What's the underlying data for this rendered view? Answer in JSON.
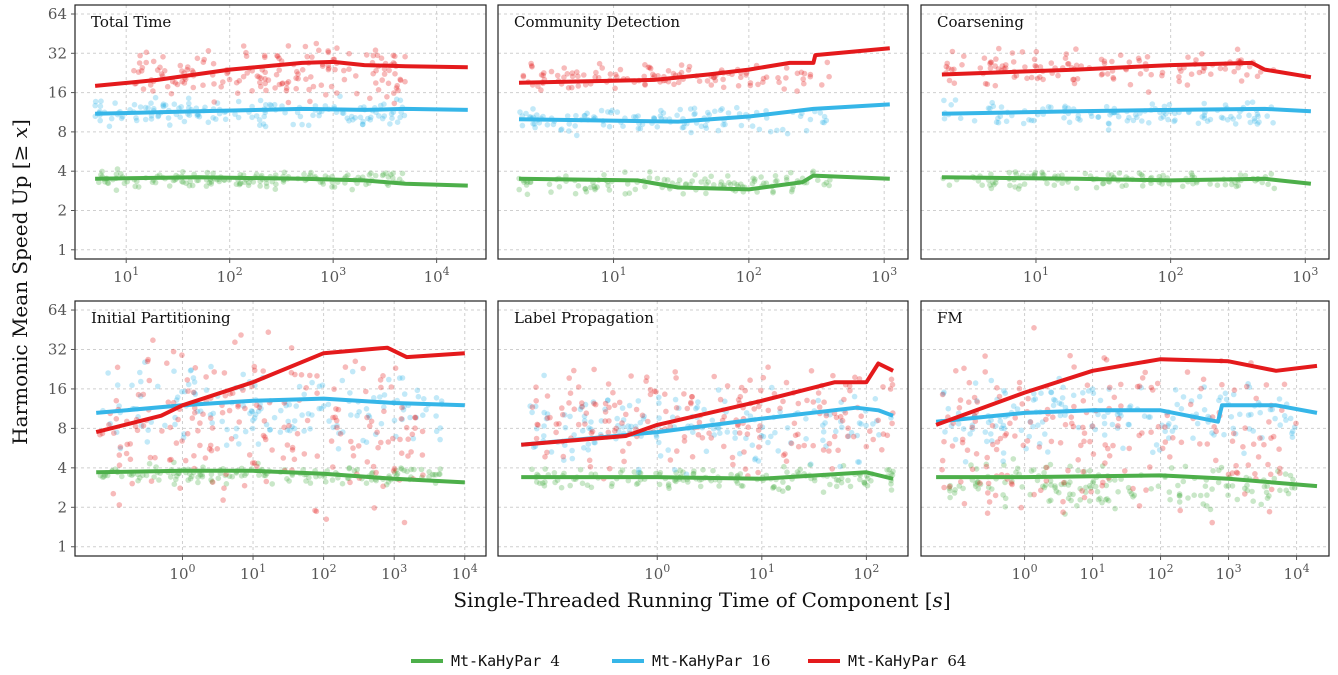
{
  "chart_data": {
    "type": "scatter",
    "y_label_parts": [
      "Harmonic Mean Speed Up [",
      "≥",
      " ",
      "x",
      "]"
    ],
    "x_label_parts": [
      "Single-Threaded Running Time of Component [",
      "s",
      "]"
    ],
    "y_scale": "log2",
    "y_range": [
      0.85,
      75
    ],
    "y_ticks": [
      1,
      2,
      4,
      8,
      16,
      32,
      64
    ],
    "x_scale": "log10",
    "grid": true,
    "legend_position": "bottom-center",
    "legend": [
      {
        "name": "Mt-KaHyPar",
        "threads": "4",
        "color": "#4daf4a"
      },
      {
        "name": "Mt-KaHyPar",
        "threads": "16",
        "color": "#36b6e8"
      },
      {
        "name": "Mt-KaHyPar",
        "threads": "64",
        "color": "#e41a1c"
      }
    ],
    "panels": [
      {
        "title": "Total Time",
        "x_range": [
          3.2,
          30000
        ],
        "x_ticks": [
          10,
          100,
          1000,
          10000
        ],
        "series": [
          {
            "threads": "4",
            "line": [
              [
                5,
                3.5
              ],
              [
                50,
                3.6
              ],
              [
                500,
                3.5
              ],
              [
                2000,
                3.4
              ],
              [
                5000,
                3.2
              ],
              [
                20000,
                3.1
              ]
            ],
            "cloud": {
              "x": [
                5,
                5000
              ],
              "y": [
                2.8,
                4.2
              ],
              "n": 150,
              "seed": 11
            }
          },
          {
            "threads": "16",
            "line": [
              [
                5,
                11
              ],
              [
                50,
                11.5
              ],
              [
                500,
                12
              ],
              [
                2000,
                11.8
              ],
              [
                5000,
                12
              ],
              [
                20000,
                11.8
              ]
            ],
            "cloud": {
              "x": [
                5,
                5000
              ],
              "y": [
                8,
                16
              ],
              "n": 150,
              "seed": 12
            }
          },
          {
            "threads": "64",
            "line": [
              [
                5,
                18
              ],
              [
                20,
                20
              ],
              [
                100,
                24
              ],
              [
                500,
                27
              ],
              [
                1000,
                27.5
              ],
              [
                2000,
                26
              ],
              [
                5000,
                25.5
              ],
              [
                20000,
                25
              ]
            ],
            "cloud": {
              "x": [
                10,
                5000
              ],
              "y": [
                12,
                45
              ],
              "n": 170,
              "seed": 13
            }
          }
        ]
      },
      {
        "title": "Community Detection",
        "x_range": [
          1.4,
          1500
        ],
        "x_ticks": [
          10,
          100,
          1000
        ],
        "series": [
          {
            "threads": "4",
            "line": [
              [
                2,
                3.5
              ],
              [
                15,
                3.4
              ],
              [
                30,
                3.0
              ],
              [
                100,
                2.9
              ],
              [
                250,
                3.3
              ],
              [
                300,
                3.7
              ],
              [
                1100,
                3.5
              ]
            ],
            "cloud": {
              "x": [
                2,
                400
              ],
              "y": [
                2.5,
                4.2
              ],
              "n": 120,
              "seed": 21
            }
          },
          {
            "threads": "16",
            "line": [
              [
                2,
                10
              ],
              [
                30,
                9.6
              ],
              [
                100,
                10.5
              ],
              [
                300,
                12
              ],
              [
                1100,
                13
              ]
            ],
            "cloud": {
              "x": [
                2,
                400
              ],
              "y": [
                7,
                14
              ],
              "n": 120,
              "seed": 22
            }
          },
          {
            "threads": "64",
            "line": [
              [
                2,
                19
              ],
              [
                20,
                20
              ],
              [
                50,
                22
              ],
              [
                100,
                24
              ],
              [
                200,
                27
              ],
              [
                300,
                27
              ],
              [
                310,
                31
              ],
              [
                1100,
                35
              ]
            ],
            "cloud": {
              "x": [
                2,
                400
              ],
              "y": [
                15,
                30
              ],
              "n": 120,
              "seed": 23
            }
          }
        ]
      },
      {
        "title": "Coarsening",
        "x_range": [
          1.4,
          1500
        ],
        "x_ticks": [
          10,
          100,
          1000
        ],
        "series": [
          {
            "threads": "4",
            "line": [
              [
                2,
                3.6
              ],
              [
                20,
                3.5
              ],
              [
                100,
                3.4
              ],
              [
                500,
                3.5
              ],
              [
                1100,
                3.2
              ]
            ],
            "cloud": {
              "x": [
                2,
                600
              ],
              "y": [
                2.8,
                4.2
              ],
              "n": 120,
              "seed": 31
            }
          },
          {
            "threads": "16",
            "line": [
              [
                2,
                11
              ],
              [
                20,
                11.5
              ],
              [
                100,
                11.8
              ],
              [
                500,
                12
              ],
              [
                1100,
                11.5
              ]
            ],
            "cloud": {
              "x": [
                2,
                600
              ],
              "y": [
                8,
                15
              ],
              "n": 120,
              "seed": 32
            }
          },
          {
            "threads": "64",
            "line": [
              [
                2,
                22
              ],
              [
                20,
                24
              ],
              [
                100,
                26
              ],
              [
                400,
                27
              ],
              [
                500,
                24
              ],
              [
                1100,
                21
              ]
            ],
            "cloud": {
              "x": [
                2,
                600
              ],
              "y": [
                15,
                40
              ],
              "n": 130,
              "seed": 33
            }
          }
        ]
      },
      {
        "title": "Initial Partitioning",
        "x_range": [
          0.03,
          20000
        ],
        "x_ticks": [
          1,
          10,
          100,
          1000,
          10000
        ],
        "series": [
          {
            "threads": "4",
            "line": [
              [
                0.06,
                3.7
              ],
              [
                1,
                3.8
              ],
              [
                10,
                3.8
              ],
              [
                100,
                3.6
              ],
              [
                1000,
                3.3
              ],
              [
                10000,
                3.1
              ]
            ],
            "cloud": {
              "x": [
                0.06,
                5000
              ],
              "y": [
                2.8,
                4.5
              ],
              "n": 150,
              "seed": 41
            }
          },
          {
            "threads": "16",
            "line": [
              [
                0.06,
                10.5
              ],
              [
                1,
                12
              ],
              [
                10,
                13
              ],
              [
                100,
                13.5
              ],
              [
                1000,
                12.5
              ],
              [
                10000,
                12
              ]
            ],
            "cloud": {
              "x": [
                0.06,
                5000
              ],
              "y": [
                4,
                30
              ],
              "n": 160,
              "seed": 42
            }
          },
          {
            "threads": "64",
            "line": [
              [
                0.06,
                7.5
              ],
              [
                0.5,
                10
              ],
              [
                1,
                12
              ],
              [
                10,
                18
              ],
              [
                100,
                30
              ],
              [
                800,
                33
              ],
              [
                1500,
                28
              ],
              [
                10000,
                30
              ]
            ],
            "cloud": {
              "x": [
                0.06,
                3000
              ],
              "y": [
                1.1,
                60
              ],
              "n": 200,
              "seed": 43
            }
          }
        ]
      },
      {
        "title": "Label Propagation",
        "x_range": [
          0.03,
          250
        ],
        "x_ticks": [
          1,
          10,
          100
        ],
        "series": [
          {
            "threads": "4",
            "line": [
              [
                0.05,
                3.4
              ],
              [
                1,
                3.4
              ],
              [
                10,
                3.3
              ],
              [
                100,
                3.7
              ],
              [
                180,
                3.3
              ]
            ],
            "cloud": {
              "x": [
                0.06,
                180
              ],
              "y": [
                2.5,
                4.5
              ],
              "n": 150,
              "seed": 51
            }
          },
          {
            "threads": "16",
            "line": [
              [
                0.05,
                6
              ],
              [
                1,
                7.5
              ],
              [
                10,
                9.5
              ],
              [
                80,
                11.5
              ],
              [
                130,
                11
              ],
              [
                180,
                10
              ]
            ],
            "cloud": {
              "x": [
                0.06,
                180
              ],
              "y": [
                3,
                22
              ],
              "n": 160,
              "seed": 52
            }
          },
          {
            "threads": "64",
            "line": [
              [
                0.05,
                6
              ],
              [
                0.5,
                7
              ],
              [
                1,
                8.5
              ],
              [
                10,
                13
              ],
              [
                50,
                18
              ],
              [
                100,
                18
              ],
              [
                130,
                25
              ],
              [
                180,
                22
              ]
            ],
            "cloud": {
              "x": [
                0.06,
                180
              ],
              "y": [
                2.5,
                40
              ],
              "n": 200,
              "seed": 53
            }
          }
        ]
      },
      {
        "title": "FM",
        "x_range": [
          0.03,
          30000
        ],
        "x_ticks": [
          1,
          10,
          100,
          1000,
          10000
        ],
        "series": [
          {
            "threads": "4",
            "line": [
              [
                0.05,
                3.4
              ],
              [
                1,
                3.4
              ],
              [
                100,
                3.5
              ],
              [
                1000,
                3.3
              ],
              [
                20000,
                2.9
              ]
            ],
            "cloud": {
              "x": [
                0.06,
                10000
              ],
              "y": [
                1.6,
                5
              ],
              "n": 160,
              "seed": 61
            }
          },
          {
            "threads": "16",
            "line": [
              [
                0.05,
                9
              ],
              [
                1,
                10.5
              ],
              [
                10,
                11
              ],
              [
                100,
                11
              ],
              [
                700,
                9
              ],
              [
                800,
                12
              ],
              [
                5000,
                12
              ],
              [
                20000,
                10.5
              ]
            ],
            "cloud": {
              "x": [
                0.06,
                10000
              ],
              "y": [
                4,
                25
              ],
              "n": 170,
              "seed": 62
            }
          },
          {
            "threads": "64",
            "line": [
              [
                0.05,
                8.5
              ],
              [
                1,
                15
              ],
              [
                10,
                22
              ],
              [
                100,
                27
              ],
              [
                1000,
                26
              ],
              [
                5000,
                22
              ],
              [
                20000,
                24
              ]
            ],
            "cloud": {
              "x": [
                0.06,
                10000
              ],
              "y": [
                1.1,
                50
              ],
              "n": 200,
              "seed": 63
            }
          }
        ]
      }
    ]
  }
}
